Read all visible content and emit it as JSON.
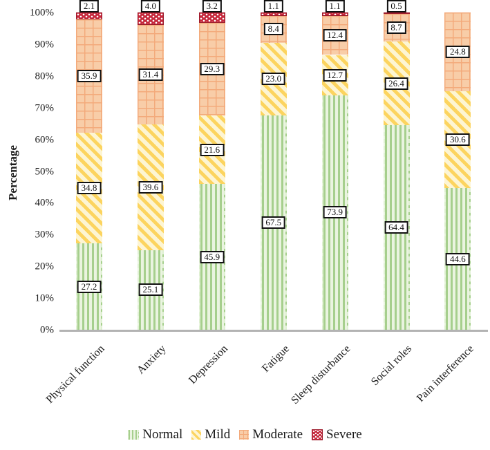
{
  "chart_data": {
    "type": "bar",
    "subtype": "stacked-percent",
    "title": "",
    "ylabel": "Percentage",
    "xlabel": "",
    "ylim": [
      0,
      100
    ],
    "grid": false,
    "legend_position": "bottom",
    "yticks": [
      "0%",
      "10%",
      "20%",
      "30%",
      "40%",
      "50%",
      "60%",
      "70%",
      "80%",
      "90%",
      "100%"
    ],
    "categories": [
      "Physical function",
      "Anxiety",
      "Depression",
      "Fatigue",
      "Sleep disturbance",
      "Social roles",
      "Pain interference"
    ],
    "series": [
      {
        "name": "Normal",
        "key": "normal",
        "values": [
          27.2,
          25.1,
          45.9,
          67.5,
          73.9,
          64.4,
          44.6
        ]
      },
      {
        "name": "Mild",
        "key": "mild",
        "values": [
          34.8,
          39.6,
          21.6,
          23.0,
          12.7,
          26.4,
          30.6
        ]
      },
      {
        "name": "Moderate",
        "key": "moderate",
        "values": [
          35.9,
          31.4,
          29.3,
          8.4,
          12.4,
          8.7,
          24.8
        ]
      },
      {
        "name": "Severe",
        "key": "severe",
        "values": [
          2.1,
          4.0,
          3.2,
          1.1,
          1.1,
          0.5,
          null
        ]
      }
    ],
    "colors": {
      "normal": "#a6cf8d",
      "mild": "#fcd45f",
      "moderate": "#f3aa7b",
      "severe": "#c5273b",
      "axis_line": "#b3b3b3",
      "label_box_border": "#111111"
    },
    "patterns": {
      "normal": "vertical-stripes",
      "mild": "diagonal-stripes",
      "moderate": "grid",
      "severe": "polka-dots"
    }
  }
}
